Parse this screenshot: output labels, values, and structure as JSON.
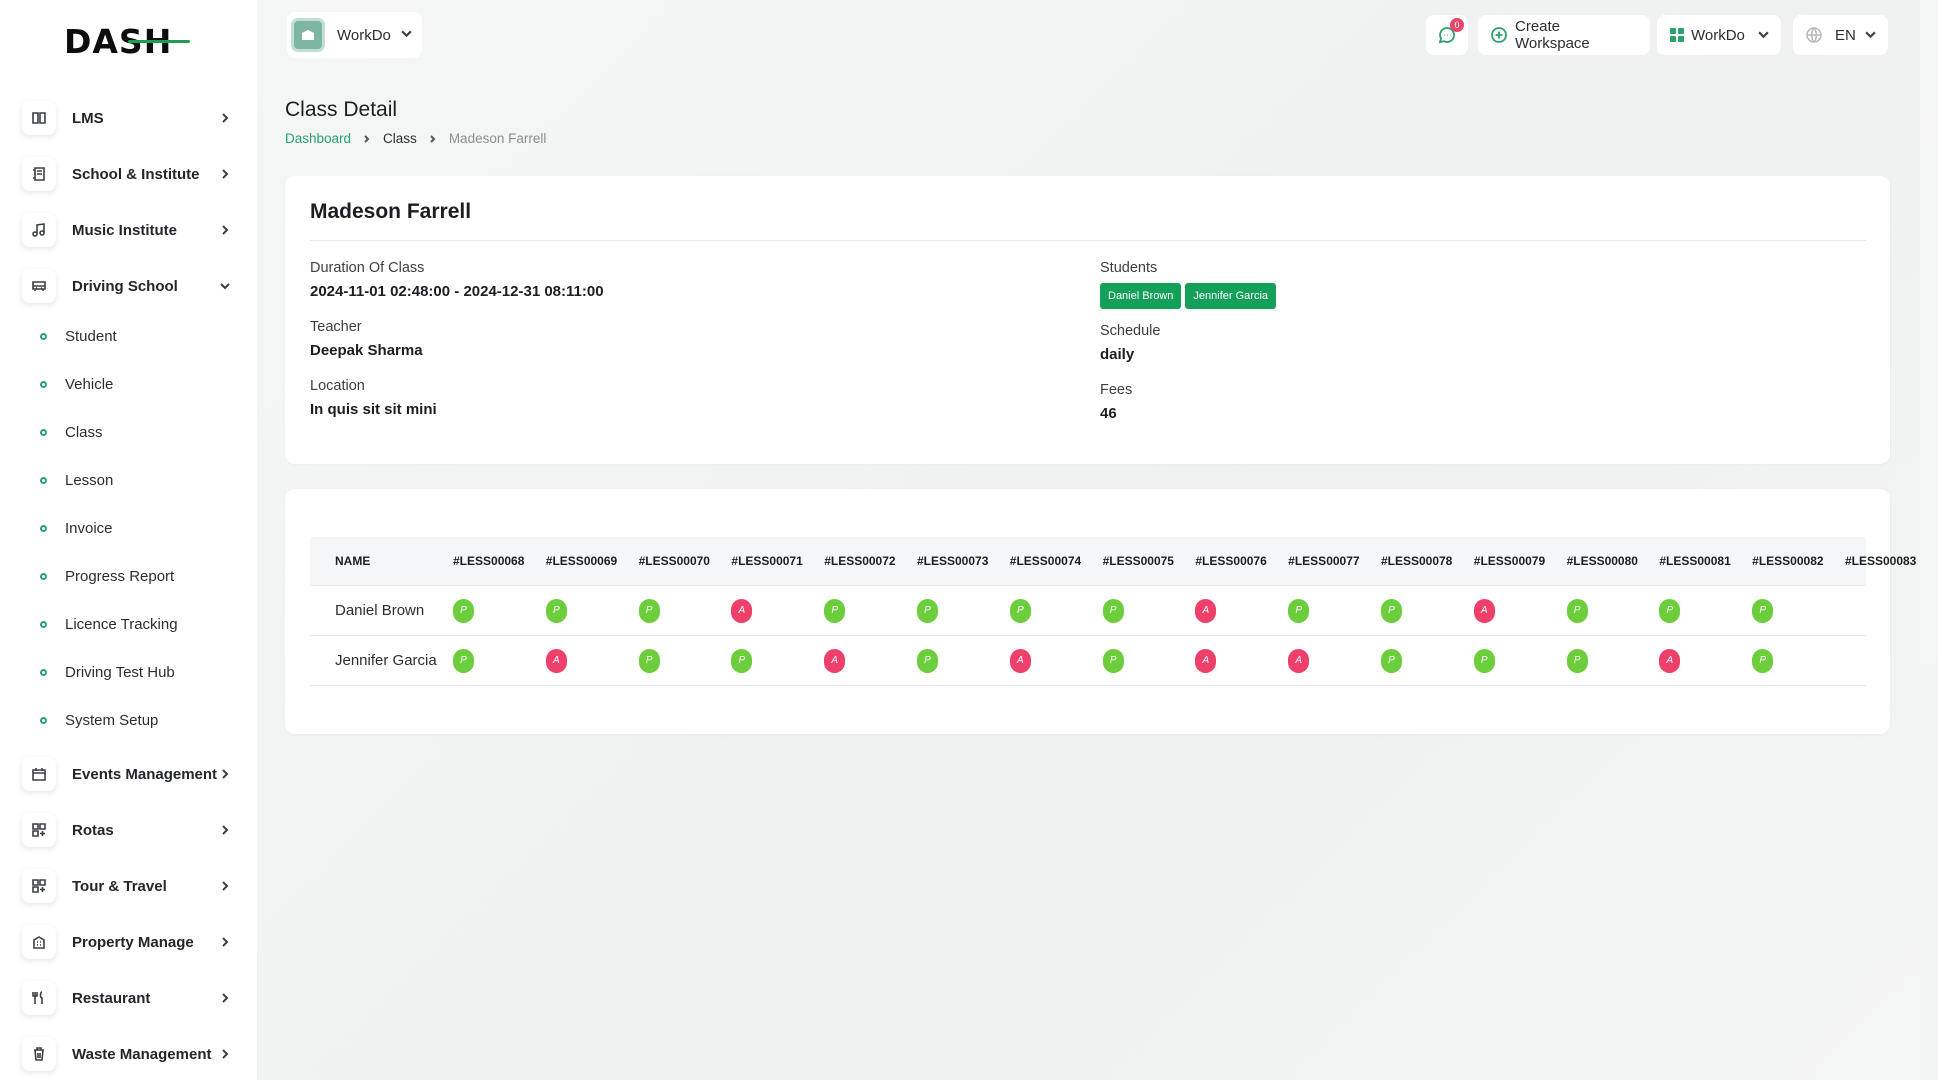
{
  "brand": {
    "logo_text": "DASH"
  },
  "sidebar": {
    "items": [
      {
        "label": "LMS",
        "icon": "book-icon"
      },
      {
        "label": "School & Institute",
        "icon": "notebook-icon"
      },
      {
        "label": "Music Institute",
        "icon": "music-icon"
      },
      {
        "label": "Driving School",
        "icon": "bus-icon",
        "expanded": true
      }
    ],
    "sub_items": [
      {
        "label": "Student"
      },
      {
        "label": "Vehicle"
      },
      {
        "label": "Class"
      },
      {
        "label": "Lesson"
      },
      {
        "label": "Invoice"
      },
      {
        "label": "Progress Report"
      },
      {
        "label": "Licence Tracking"
      },
      {
        "label": "Driving Test Hub"
      },
      {
        "label": "System Setup"
      }
    ],
    "items_after": [
      {
        "label": "Events Management",
        "icon": "calendar-icon"
      },
      {
        "label": "Rotas",
        "icon": "apps-icon"
      },
      {
        "label": "Tour & Travel",
        "icon": "apps-icon"
      },
      {
        "label": "Property Manage",
        "icon": "building-icon"
      },
      {
        "label": "Restaurant",
        "icon": "utensils-icon"
      },
      {
        "label": "Waste Management",
        "icon": "trash-icon"
      }
    ]
  },
  "topbar": {
    "workspace_name": "WorkDo",
    "message_count": "0",
    "create_workspace": "Create Workspace",
    "workspace_menu": "WorkDo",
    "language": "EN"
  },
  "page": {
    "title": "Class Detail",
    "breadcrumb": [
      "Dashboard",
      "Class",
      "Madeson Farrell"
    ]
  },
  "detail": {
    "name": "Madeson Farrell",
    "duration_label": "Duration Of Class",
    "duration_value": "2024-11-01 02:48:00 - 2024-12-31 08:11:00",
    "teacher_label": "Teacher",
    "teacher_value": "Deepak Sharma",
    "location_label": "Location",
    "location_value": "In quis sit sit mini",
    "students_label": "Students",
    "students": [
      "Daniel Brown",
      "Jennifer Garcia"
    ],
    "schedule_label": "Schedule",
    "schedule_value": "daily",
    "fees_label": "Fees",
    "fees_value": "46"
  },
  "attendance": {
    "name_header": "NAME",
    "lessons": [
      "#LESS00068",
      "#LESS00069",
      "#LESS00070",
      "#LESS00071",
      "#LESS00072",
      "#LESS00073",
      "#LESS00074",
      "#LESS00075",
      "#LESS00076",
      "#LESS00077",
      "#LESS00078",
      "#LESS00079",
      "#LESS00080",
      "#LESS00081",
      "#LESS00082",
      "#LESS00083"
    ],
    "rows": [
      {
        "name": "Daniel Brown",
        "marks": [
          "P",
          "P",
          "P",
          "A",
          "P",
          "P",
          "P",
          "P",
          "A",
          "P",
          "P",
          "A",
          "P",
          "P",
          "P"
        ]
      },
      {
        "name": "Jennifer Garcia",
        "marks": [
          "P",
          "A",
          "P",
          "P",
          "A",
          "P",
          "A",
          "P",
          "A",
          "A",
          "P",
          "P",
          "P",
          "A",
          "P"
        ]
      }
    ],
    "colors": {
      "present": "#6cce3c",
      "absent": "#ef3f6b"
    }
  },
  "colors": {
    "accent": "#2aa36b",
    "chip": "#15a05a"
  }
}
